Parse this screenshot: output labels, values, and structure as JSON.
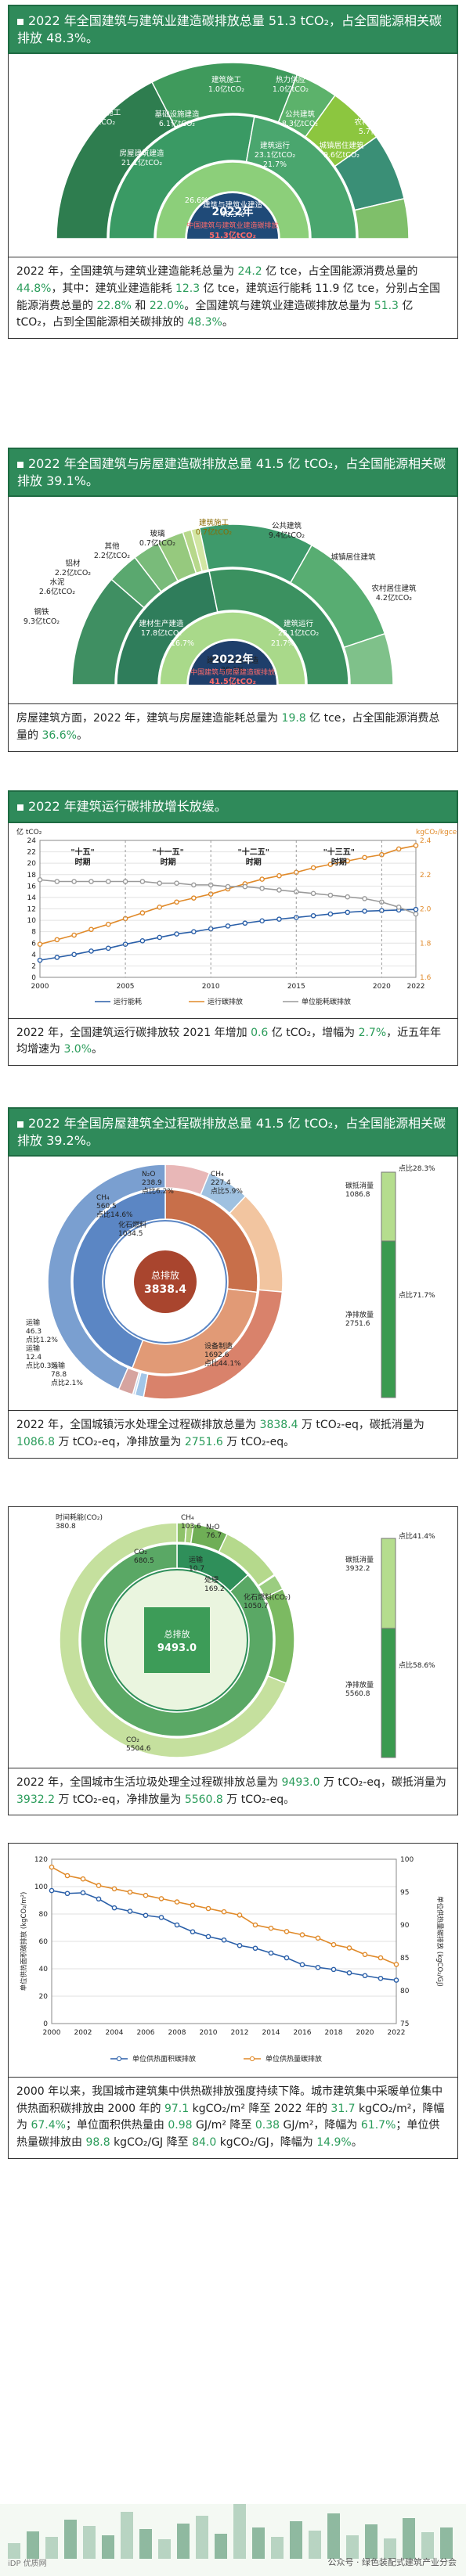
{
  "panels": [
    {
      "title": "2022 年全国建筑与建筑业建造碳排放总量 51.3 tCO₂，占全国能源相关碳排放 48.3%。",
      "caption_parts": [
        "2022 年，全国建筑与建筑业建造能耗总量为 ",
        "24.2",
        " 亿 tce，占全国能源消费总量的 ",
        "44.8%",
        "，其中：建筑业建造能耗 ",
        "12.3",
        " 亿 tce，建筑运行能耗 11.9 亿 tce，分别占全国能源消费总量的 ",
        "22.8%",
        " 和 ",
        "22.0%",
        "。全国建筑与建筑业建造碳排放总量为 ",
        "51.3",
        " 亿 tCO₂，占到全国能源相关碳排放的 ",
        "48.3%",
        "。"
      ]
    },
    {
      "title": "2022 年全国建筑与房屋建造碳排放总量 41.5 亿 tCO₂，占全国能源相关碳排放 39.1%。",
      "caption_parts": [
        "房屋建筑方面，2022 年，建筑与房屋建造能耗总量为 ",
        "19.8",
        " 亿 tce，占全国能源消费总量的 ",
        "36.6%",
        "。"
      ]
    },
    {
      "title": "2022 年建筑运行碳排放增长放缓。",
      "caption_parts": [
        "2022 年，全国建筑运行碳排放较 2021 年增加 ",
        "0.6",
        " 亿 tCO₂，增幅为 ",
        "2.7%",
        "，近五年年均增速为 ",
        "3.0%",
        "。"
      ]
    },
    {
      "title": "2022 年全国房屋建筑全过程碳排放总量 41.5 亿 tCO₂，占全国能源相关碳排放 39.2%。",
      "caption_parts": [
        "2022 年，全国城镇污水处理全过程碳排放总量为 ",
        "3838.4",
        " 万 tCO₂-eq，碳抵消量为 ",
        "1086.8",
        " 万 tCO₂-eq，净排放量为 ",
        "2751.6",
        " 万 tCO₂-eq。"
      ]
    },
    {
      "caption_parts": [
        "2022 年，全国城市生活垃圾处理全过程碳排放总量为 ",
        "9493.0",
        " 万 tCO₂-eq，碳抵消量为 ",
        "3932.2",
        " 万 tCO₂-eq，净排放量为 ",
        "5560.8",
        " 万 tCO₂-eq。"
      ]
    },
    {
      "caption_parts": [
        "2000 年以来，我国城市建筑集中供热碳排放强度持续下降。城市建筑集中采暖单位集中供热面积碳排放由 2000 年的 ",
        "97.1",
        " kgCO₂/m² 降至 2022 年的 ",
        "31.7",
        " kgCO₂/m²，降幅为 ",
        "67.4%",
        "；单位面积供热量由 ",
        "0.98",
        " GJ/m² 降至 ",
        "0.38",
        " GJ/m²，降幅为 ",
        "61.7%",
        "；单位供热量碳排放由 ",
        "98.8",
        " kgCO₂/GJ 降至 ",
        "84.0",
        " kgCO₂/GJ，降幅为 ",
        "14.9%",
        "。"
      ]
    }
  ],
  "chart_data": [
    {
      "type": "pie",
      "title": "2022年 中国建筑与建筑业建造碳排放 51.3亿tCO₂",
      "center_label": [
        "2022年",
        "中国建筑与建筑业建造碳排放",
        "51.3亿tCO₂"
      ],
      "inner_ring": [
        {
          "label": "建筑与建筑业建造",
          "value": 48.3,
          "unit": "%"
        }
      ],
      "middle_ring": [
        {
          "label": "建筑业建造",
          "value": 27.2
        },
        {
          "label": "建筑运行",
          "value": 21.7
        }
      ],
      "outer_ring": [
        {
          "label": "建筑生产与施工",
          "value": 27.2
        },
        {
          "label": "房屋建筑建造",
          "value": 21.1
        },
        {
          "label": "基础设施建造",
          "value": 6.1
        },
        {
          "label": "公共建筑",
          "value": 8.3
        },
        {
          "label": "城镇居住建筑",
          "value": 9.6
        },
        {
          "label": "农村居住建筑",
          "value": 5.7
        }
      ],
      "labels_text": [
        "建筑生产与施工 27.2亿tCO₂",
        "房屋建筑建造 21.1亿tCO₂",
        "基础设施建造 6.1亿tCO₂",
        "建筑施工 1.0亿tCO₂",
        "热力供应 1.0亿tCO₂",
        "建筑运行 23.1亿tCO₂ 21.7%",
        "公共建筑 8.3亿tCO₂",
        "城镇居住建筑 9.6亿tCO₂",
        "农村居住建筑 5.7亿tCO₂",
        "26.6%",
        "建筑与建筑业建造 48.3%"
      ]
    },
    {
      "type": "pie",
      "title": "2022年 中国建筑与房屋建造碳排放 41.5亿tCO₂",
      "center_label": [
        "2022年",
        "中国建筑与房屋建造碳排放",
        "41.5亿tCO₂"
      ],
      "labels_text": [
        "钢铁 9.3亿tCO₂",
        "水泥 2.6亿tCO₂",
        "铝材 2.2亿tCO₂",
        "其他 2.2亿tCO₂",
        "玻璃 0.7亿tCO₂",
        "建筑施工 0.7亿tCO₂",
        "公共建筑 9.4亿tCO₂",
        "城镇居住建筑",
        "农村居住建筑 4.2亿tCO₂",
        "建材生产建造 17.8亿tCO₂",
        "建筑运行 23.1亿tCO₂",
        "16.7%",
        "21.7%",
        "建筑与房屋建造 39.1%"
      ]
    },
    {
      "type": "line",
      "title": "",
      "ylabel_left": "亿 tCO₂",
      "ylabel_right": "kgCO₂/kgce",
      "x": [
        2000,
        2001,
        2002,
        2003,
        2004,
        2005,
        2006,
        2007,
        2008,
        2009,
        2010,
        2011,
        2012,
        2013,
        2014,
        2015,
        2016,
        2017,
        2018,
        2019,
        2020,
        2021,
        2022
      ],
      "xticks": [
        2000,
        2005,
        2010,
        2015,
        2020,
        2022
      ],
      "ylim_left": [
        0,
        24
      ],
      "yticks_left": [
        0,
        2,
        4,
        6,
        8,
        10,
        12,
        14,
        16,
        18,
        20,
        22,
        24
      ],
      "ylim_right": [
        1.6,
        2.4
      ],
      "yticks_right": [
        1.6,
        1.8,
        2.0,
        2.2,
        2.4
      ],
      "period_labels": [
        "\"十五\" 时期",
        "\"十一五\" 时期",
        "\"十二五\" 时期",
        "\"十三五\" 时期"
      ],
      "series": [
        {
          "name": "运行能耗",
          "color": "#2a5fa8",
          "values": [
            3.0,
            3.5,
            4.0,
            4.6,
            5.1,
            5.8,
            6.4,
            7.0,
            7.6,
            8.0,
            8.5,
            9.0,
            9.5,
            9.9,
            10.2,
            10.5,
            10.8,
            11.1,
            11.4,
            11.6,
            11.7,
            11.8,
            11.9
          ]
        },
        {
          "name": "运行碳排放",
          "color": "#e08a2a",
          "values": [
            5.8,
            6.6,
            7.4,
            8.4,
            9.3,
            10.3,
            11.3,
            12.3,
            13.2,
            13.9,
            14.6,
            15.5,
            16.4,
            17.2,
            17.8,
            18.4,
            19.2,
            19.8,
            20.4,
            21.0,
            21.5,
            22.5,
            23.1
          ]
        },
        {
          "name": "单位能耗碳排放",
          "color": "#9a9a9a",
          "axis": "right",
          "values": [
            2.17,
            2.16,
            2.16,
            2.16,
            2.16,
            2.16,
            2.16,
            2.15,
            2.15,
            2.14,
            2.14,
            2.13,
            2.13,
            2.12,
            2.11,
            2.1,
            2.09,
            2.08,
            2.07,
            2.06,
            2.04,
            2.01,
            1.97
          ]
        }
      ]
    },
    {
      "type": "pie",
      "title": "",
      "center_label": [
        "总排放",
        "3838.4"
      ],
      "labels_text": [
        "N₂O 238.9 点比6.2%",
        "CH₄ 227.4 点比5.9%",
        "CH₄ 560.5 点比14.6%",
        "化石燃料 1034.5",
        "运输 46.3 点比1.2%",
        "运输 12.4 点比0.3%",
        "运输 78.8 点比2.1%",
        "设备制造 1692.6 点比44.1%",
        "碳抵消量 1086.8",
        "净排放量 2751.6",
        "点比28.3%",
        "点比71.7%"
      ]
    },
    {
      "type": "pie",
      "title": "",
      "center_label": [
        "总排放",
        "9493.0"
      ],
      "labels_text": [
        "CH₄ 103.6",
        "N₂O 76.7",
        "时间耗能(CO₂) 380.8",
        "CO₂ 680.5",
        "运输 10.7",
        "处理 169.2",
        "化石燃料(CO₂) 1050.7",
        "CO₂ 5504.6",
        "碳抵消量 3932.2",
        "净排放量 5560.8",
        "点比41.4%",
        "点比58.6%"
      ]
    },
    {
      "type": "line",
      "title": "",
      "ylabel_left": "单位供热面积碳排放 (kgCO₂/m²)",
      "ylabel_right": "单位供热量碳排放 (kgCO₂/GJ)",
      "x": [
        2000,
        2001,
        2002,
        2003,
        2004,
        2005,
        2006,
        2007,
        2008,
        2009,
        2010,
        2011,
        2012,
        2013,
        2014,
        2015,
        2016,
        2017,
        2018,
        2019,
        2020,
        2021,
        2022
      ],
      "xticks": [
        2000,
        2002,
        2004,
        2006,
        2008,
        2010,
        2012,
        2014,
        2016,
        2018,
        2020,
        2022
      ],
      "ylim_left": [
        0,
        120
      ],
      "yticks_left": [
        0,
        20,
        40,
        60,
        80,
        100,
        120
      ],
      "ylim_right": [
        75,
        100
      ],
      "yticks_right": [
        75,
        80,
        85,
        90,
        95,
        100
      ],
      "series": [
        {
          "name": "单位供热面积碳排放",
          "color": "#2a5fa8",
          "values": [
            97.1,
            95.0,
            95.5,
            91.0,
            84.5,
            82.0,
            79.0,
            77.5,
            72.0,
            67.0,
            63.5,
            61.0,
            57.0,
            55.0,
            51.5,
            48.0,
            43.0,
            41.0,
            39.5,
            37.0,
            35.0,
            33.0,
            31.7
          ]
        },
        {
          "name": "单位供热量碳排放",
          "color": "#e08a2a",
          "axis": "right",
          "values": [
            98.8,
            97.5,
            97.0,
            96.0,
            95.5,
            95.0,
            94.5,
            94.0,
            93.5,
            93.0,
            92.5,
            92.0,
            91.5,
            90.0,
            89.5,
            89.0,
            88.5,
            88.0,
            87.0,
            86.5,
            85.5,
            85.0,
            84.0
          ]
        }
      ]
    }
  ],
  "footer": {
    "source": "公众号 · 绿色装配式建筑产业分会",
    "left_mark": "iDP 优质网"
  },
  "colors": {
    "green": "#2f8a5a",
    "light_green": "#8cc63f",
    "blue": "#2a5fa8",
    "orange": "#e08a2a",
    "red": "#c0392b",
    "gray": "#9a9a9a"
  }
}
